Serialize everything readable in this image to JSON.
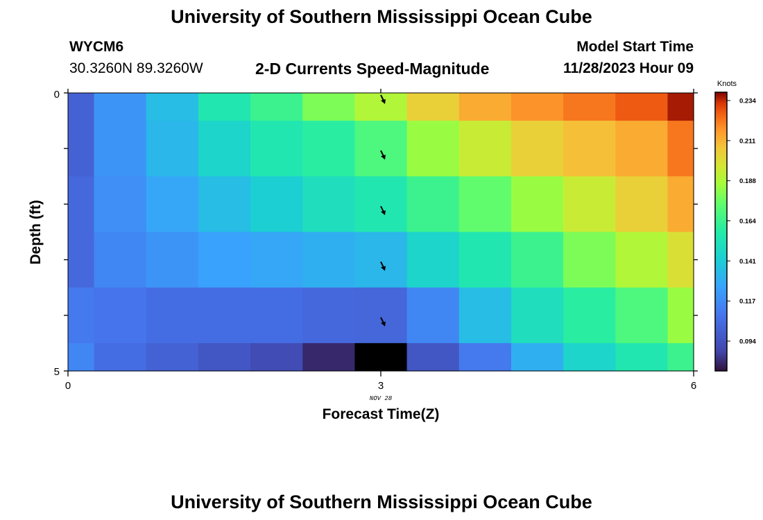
{
  "header": {
    "title": "University of Southern Mississippi Ocean Cube",
    "station": "WYCM6",
    "coordinates": "30.3260N  89.3260W",
    "plot_title": "2-D Currents Speed-Magnitude",
    "model_start_label": "Model Start Time",
    "model_start_value": "11/28/2023 Hour 09"
  },
  "footer": {
    "title": "University of Southern Mississippi Ocean Cube"
  },
  "chart_data": {
    "type": "heatmap",
    "title": "2-D Currents Speed-Magnitude",
    "xlabel": "Forecast Time(Z)",
    "ylabel": "Depth (ft)",
    "x_ticks": [
      "0",
      "3",
      "6"
    ],
    "x_sublabel": "NOV 28",
    "y_ticks": [
      "0",
      "5"
    ],
    "xlim": [
      0,
      6
    ],
    "ylim": [
      0,
      5
    ],
    "colorbar": {
      "label": "Knots",
      "ticks": [
        "0.234",
        "0.211",
        "0.188",
        "0.164",
        "0.141",
        "0.117",
        "0.094"
      ]
    },
    "x_columns": [
      0,
      0.5,
      1,
      1.5,
      2,
      2.5,
      3,
      3.5,
      4,
      4.5,
      5,
      5.5,
      6
    ],
    "depth_rows": [
      0,
      1,
      2,
      3,
      4,
      5
    ],
    "speed_knots": [
      [
        0.095,
        0.115,
        0.13,
        0.15,
        0.16,
        0.175,
        0.185,
        0.2,
        0.21,
        0.215,
        0.22,
        0.225,
        0.234
      ],
      [
        0.095,
        0.115,
        0.128,
        0.14,
        0.15,
        0.155,
        0.165,
        0.18,
        0.19,
        0.2,
        0.205,
        0.21,
        0.22
      ],
      [
        0.098,
        0.113,
        0.122,
        0.13,
        0.137,
        0.145,
        0.15,
        0.16,
        0.17,
        0.18,
        0.19,
        0.2,
        0.21
      ],
      [
        0.098,
        0.11,
        0.115,
        0.12,
        0.122,
        0.125,
        0.128,
        0.14,
        0.15,
        0.16,
        0.175,
        0.185,
        0.195
      ],
      [
        0.105,
        0.103,
        0.1,
        0.1,
        0.1,
        0.098,
        0.097,
        0.11,
        0.13,
        0.145,
        0.155,
        0.165,
        0.18
      ],
      [
        0.11,
        0.1,
        0.095,
        0.09,
        0.085,
        0.075,
        0.06,
        0.09,
        0.105,
        0.125,
        0.14,
        0.15,
        0.16
      ]
    ],
    "arrows": [
      {
        "x": 3,
        "depth": 0
      },
      {
        "x": 3,
        "depth": 1
      },
      {
        "x": 3,
        "depth": 2
      },
      {
        "x": 3,
        "depth": 3
      },
      {
        "x": 3,
        "depth": 4
      }
    ]
  }
}
